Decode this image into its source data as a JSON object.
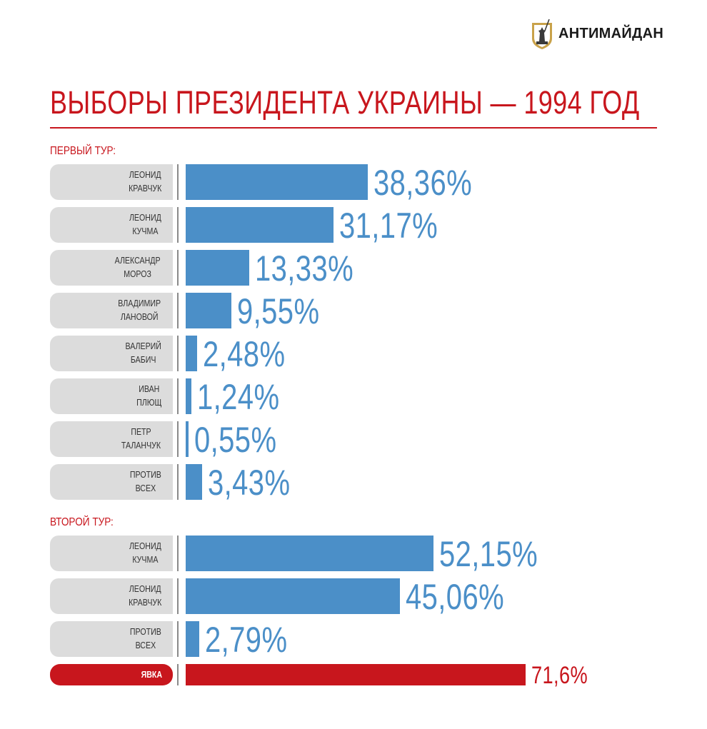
{
  "brand": {
    "name": "АНТИМАЙДАН"
  },
  "title": "ВЫБОРЫ ПРЕЗИДЕНТА УКРАИНЫ — 1994 ГОД",
  "colors": {
    "accent": "#c8161d",
    "bar": "#4b8fc8",
    "pill": "#dcdcdc"
  },
  "chart_data": {
    "type": "bar",
    "orientation": "horizontal",
    "title": "ВЫБОРЫ ПРЕЗИДЕНТА УКРАИНЫ — 1994 ГОД",
    "groups": [
      {
        "label": "ПЕРВЫЙ ТУР:",
        "items": [
          {
            "line1": "ЛЕОНИД",
            "line2": "КРАВЧУК",
            "value": 38.36,
            "text": "38,36%"
          },
          {
            "line1": "ЛЕОНИД",
            "line2": "КУЧМА",
            "value": 31.17,
            "text": "31,17%"
          },
          {
            "line1": "АЛЕКСАНДР",
            "line2": "МОРОЗ",
            "value": 13.33,
            "text": "13,33%"
          },
          {
            "line1": "ВЛАДИМИР",
            "line2": "ЛАНОВОЙ",
            "value": 9.55,
            "text": "9,55%"
          },
          {
            "line1": "ВАЛЕРИЙ",
            "line2": "БАБИЧ",
            "value": 2.48,
            "text": "2,48%"
          },
          {
            "line1": "ИВАН",
            "line2": "ПЛЮЩ",
            "value": 1.24,
            "text": "1,24%"
          },
          {
            "line1": "ПЕТР",
            "line2": "ТАЛАНЧУК",
            "value": 0.55,
            "text": "0,55%"
          },
          {
            "line1": "ПРОТИВ",
            "line2": "ВСЕХ",
            "value": 3.43,
            "text": "3,43%"
          }
        ]
      },
      {
        "label": "ВТОРОЙ ТУР:",
        "items": [
          {
            "line1": "ЛЕОНИД",
            "line2": "КУЧМА",
            "value": 52.15,
            "text": "52,15%"
          },
          {
            "line1": "ЛЕОНИД",
            "line2": "КРАВЧУК",
            "value": 45.06,
            "text": "45,06%"
          },
          {
            "line1": "ПРОТИВ",
            "line2": "ВСЕХ",
            "value": 2.79,
            "text": "2,79%"
          }
        ]
      }
    ],
    "turnout": {
      "label": "ЯВКА",
      "value": 71.6,
      "text": "71,6%"
    }
  }
}
